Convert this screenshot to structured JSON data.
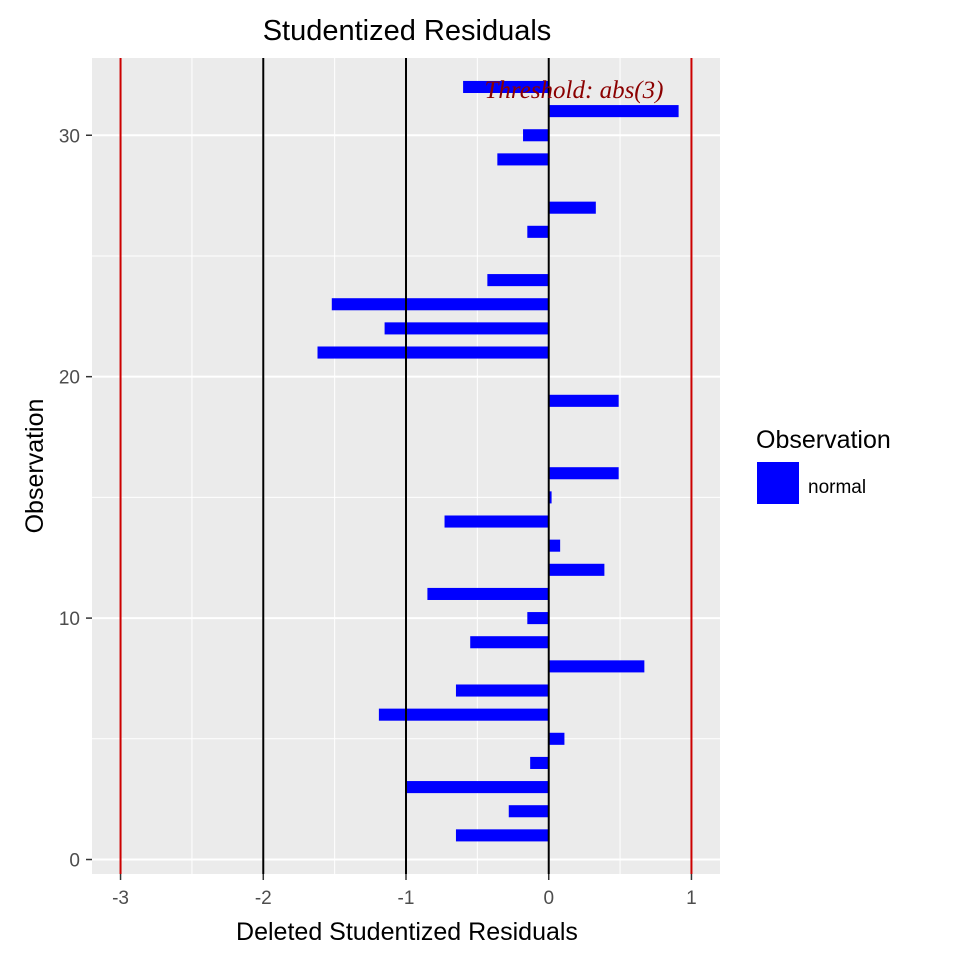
{
  "chart_data": {
    "type": "bar",
    "orientation": "horizontal",
    "title": "Studentized Residuals",
    "xlabel": "Deleted Studentized Residuals",
    "ylabel": "Observation",
    "xlim": [
      -3.2,
      1.2
    ],
    "ylim": [
      -0.6,
      33.2
    ],
    "x_ticks": [
      -3,
      -2,
      -1,
      0,
      1
    ],
    "x_tick_labels": [
      "-3",
      "-2",
      "-1",
      "0",
      "1"
    ],
    "y_ticks": [
      0,
      10,
      20,
      30
    ],
    "y_tick_labels": [
      "0",
      "10",
      "20",
      "30"
    ],
    "grid": true,
    "observations": [
      1,
      2,
      3,
      4,
      5,
      6,
      7,
      8,
      9,
      10,
      11,
      12,
      13,
      14,
      15,
      16,
      19,
      21,
      22,
      23,
      24,
      26,
      27,
      29,
      30,
      31,
      32
    ],
    "values": [
      -0.65,
      -0.28,
      -1.0,
      -0.13,
      0.11,
      -1.19,
      -0.65,
      0.67,
      -0.55,
      -0.15,
      -0.85,
      0.39,
      0.08,
      -0.73,
      0.02,
      0.49,
      0.49,
      -1.62,
      -1.15,
      -1.52,
      -0.43,
      -0.15,
      0.33,
      -0.36,
      -0.18,
      0.91,
      -0.6
    ],
    "reference_lines": {
      "black": [
        -2,
        -1,
        0
      ],
      "red": [
        -3,
        1
      ]
    },
    "annotation": "Threshold: abs(3)",
    "legend": {
      "title": "Observation",
      "entries": [
        {
          "label": "normal",
          "color": "#0000ff"
        }
      ],
      "position": "right"
    },
    "colors": {
      "bar": "#0000ff",
      "panel": "#ebebeb",
      "grid": "#ffffff",
      "threshold": "#cc0000",
      "annotation": "#8b0000"
    }
  }
}
